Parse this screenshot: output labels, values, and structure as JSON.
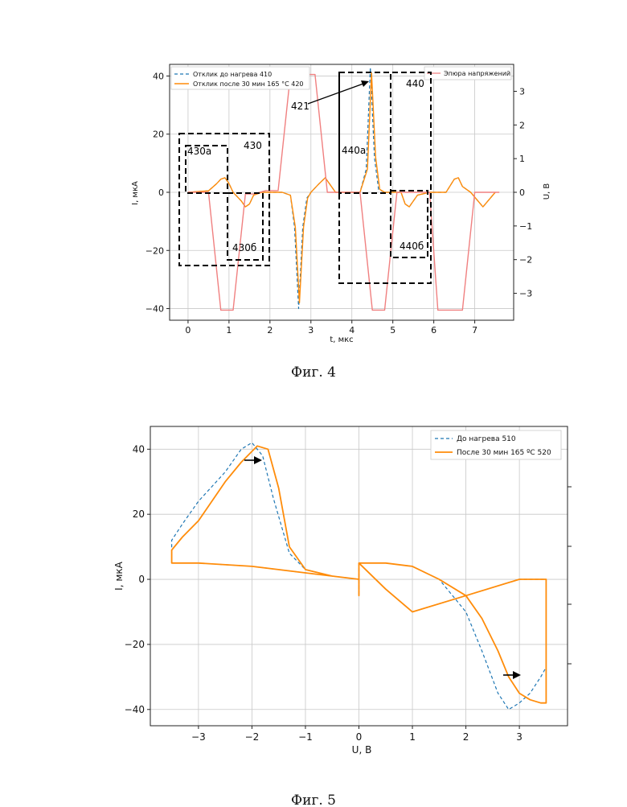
{
  "figure4": {
    "caption": "Фиг. 4",
    "chart_data": {
      "type": "line",
      "xlabel": "t, мкс",
      "ylabel": "I, мкА",
      "y2label": "U, В",
      "xlim": [
        -0.45,
        7.95
      ],
      "ylim": [
        -44,
        44
      ],
      "y2lim": [
        -3.8,
        3.8
      ],
      "xticks": [
        "0",
        "1",
        "2",
        "3",
        "4",
        "5",
        "6",
        "7"
      ],
      "yticks": [
        "40",
        "20",
        "0",
        "−20",
        "−40"
      ],
      "y2ticks": [
        "3",
        "2",
        "1",
        "0",
        "−1",
        "−2",
        "−3"
      ],
      "grid": true,
      "legend_left": "top-left",
      "legend_right": "top-right",
      "series": [
        {
          "name": "Отклик до нагрева 410",
          "axis": "left",
          "color": "#1f77b4",
          "style": "dashed",
          "x": [
            0,
            0.5,
            0.7,
            0.8,
            0.9,
            1.0,
            1.1,
            1.3,
            1.4,
            1.5,
            1.6,
            1.8,
            2.0,
            2.3,
            2.5,
            2.6,
            2.7,
            2.8,
            2.9,
            3.0,
            3.2,
            3.35,
            3.5,
            3.6,
            3.8,
            4.0,
            4.2,
            4.35,
            4.45,
            4.55,
            4.65,
            4.8,
            5.0,
            5.2,
            5.3,
            5.4,
            5.6,
            5.9,
            6.1,
            6.3,
            6.5,
            6.6,
            6.7,
            6.9,
            7.2,
            7.5
          ],
          "y": [
            0,
            0.5,
            3,
            4.5,
            5,
            3,
            0,
            -3,
            -5,
            -4,
            -1,
            0,
            0,
            0,
            -1,
            -12,
            -40,
            -12,
            -2,
            0,
            3,
            5,
            2,
            0,
            0,
            0,
            0,
            8,
            43,
            12,
            1,
            0,
            0,
            0,
            -4,
            -5,
            -1,
            0,
            0,
            0,
            4.5,
            5,
            2,
            0,
            -5,
            0
          ]
        },
        {
          "name": "Отклик после 30 мин  165 °C 420",
          "axis": "left",
          "color": "#ff8c0a",
          "style": "solid",
          "x": [
            0,
            0.5,
            0.7,
            0.8,
            0.9,
            1.0,
            1.1,
            1.3,
            1.4,
            1.5,
            1.6,
            1.8,
            2.0,
            2.3,
            2.5,
            2.62,
            2.72,
            2.82,
            2.92,
            3.0,
            3.2,
            3.35,
            3.5,
            3.6,
            3.8,
            4.0,
            4.2,
            4.38,
            4.48,
            4.58,
            4.68,
            4.8,
            5.0,
            5.2,
            5.3,
            5.4,
            5.6,
            5.9,
            6.1,
            6.3,
            6.5,
            6.6,
            6.7,
            6.9,
            7.2,
            7.5
          ],
          "y": [
            0,
            0.5,
            3,
            4.5,
            5,
            3,
            0,
            -3,
            -5,
            -4,
            -1,
            0,
            0,
            0,
            -1,
            -12,
            -38,
            -12,
            -2,
            0,
            3,
            5,
            2,
            0,
            0,
            0,
            0,
            8,
            41,
            12,
            1,
            0,
            0,
            0,
            -4,
            -5,
            -1,
            0,
            0,
            0,
            4.5,
            5,
            2,
            0,
            -5,
            0
          ]
        },
        {
          "name": "Эпюра напряжений",
          "axis": "right",
          "color": "#f08080",
          "style": "solid",
          "x": [
            0,
            0.5,
            0.8,
            1.1,
            1.4,
            1.6,
            1.9,
            2.2,
            2.5,
            2.8,
            3.1,
            3.4,
            3.6,
            3.9,
            4.2,
            4.5,
            4.8,
            5.1,
            5.35,
            5.6,
            5.9,
            6.1,
            6.4,
            6.7,
            7.0,
            7.3,
            7.6
          ],
          "y": [
            0,
            0,
            -3.5,
            -3.5,
            -0.05,
            -0.05,
            0.05,
            0.05,
            3.5,
            3.5,
            3.5,
            0,
            0,
            0,
            0,
            -3.5,
            -3.5,
            0,
            0,
            0,
            0,
            -3.5,
            -3.5,
            -3.5,
            0,
            0,
            0
          ]
        }
      ]
    },
    "annotations": {
      "box430": "430",
      "box430a": "430а",
      "box430b": "430б",
      "box440": "440",
      "box440a": "440а",
      "box440b": "440б",
      "arrow421": "421"
    }
  },
  "figure5": {
    "caption": "Фиг. 5",
    "chart_data": {
      "type": "line",
      "xlabel": "U, В",
      "ylabel": "I, мкА",
      "xlim": [
        -3.9,
        3.9
      ],
      "ylim": [
        -45,
        47
      ],
      "xticks": [
        "−3",
        "−2",
        "−1",
        "0",
        "1",
        "2",
        "3"
      ],
      "yticks": [
        "40",
        "20",
        "0",
        "−20",
        "−40"
      ],
      "grid": true,
      "legend": "top-right",
      "series": [
        {
          "name": "До нагрева 510",
          "color": "#1f77b4",
          "style": "dashed",
          "x": [
            0,
            -0.5,
            -1.0,
            -1.3,
            -1.6,
            -1.8,
            -2.0,
            -2.2,
            -2.5,
            -3.0,
            -3.3,
            -3.5,
            -3.5,
            -3.0,
            -2.0,
            -1.0,
            0,
            0,
            0,
            0.5,
            1.0,
            1.5,
            2.0,
            2.3,
            2.6,
            2.8,
            3.0,
            3.2,
            3.4,
            3.5,
            3.5,
            3.0,
            2.0,
            1.0,
            0.5,
            0
          ],
          "y": [
            0,
            1,
            3,
            8,
            25,
            38,
            42,
            40,
            33,
            24,
            17,
            12,
            5,
            5,
            4,
            2,
            0,
            -5,
            5,
            5,
            4,
            0,
            -10,
            -22,
            -35,
            -40,
            -38,
            -35,
            -30,
            -27,
            0,
            0,
            -5,
            -10,
            -3,
            5
          ]
        },
        {
          "name": "После 30 мин  165 ºC 520",
          "color": "#ff8c0a",
          "style": "solid",
          "x": [
            0,
            -0.5,
            -1.0,
            -1.3,
            -1.5,
            -1.7,
            -1.9,
            -2.2,
            -2.5,
            -3.0,
            -3.3,
            -3.5,
            -3.5,
            -3.0,
            -2.0,
            -1.0,
            0,
            0,
            0,
            0.5,
            1.0,
            1.5,
            2.0,
            2.3,
            2.6,
            2.8,
            3.0,
            3.2,
            3.4,
            3.5,
            3.5,
            3.0,
            2.0,
            1.0,
            0.5,
            0
          ],
          "y": [
            0,
            1,
            3,
            10,
            28,
            40,
            41,
            36,
            30,
            18,
            13,
            9,
            5,
            5,
            4,
            2,
            0,
            -5,
            5,
            5,
            4,
            0,
            -5,
            -12,
            -22,
            -30,
            -35,
            -37,
            -38,
            -38,
            0,
            0,
            -5,
            -10,
            -3,
            5
          ]
        }
      ]
    }
  }
}
